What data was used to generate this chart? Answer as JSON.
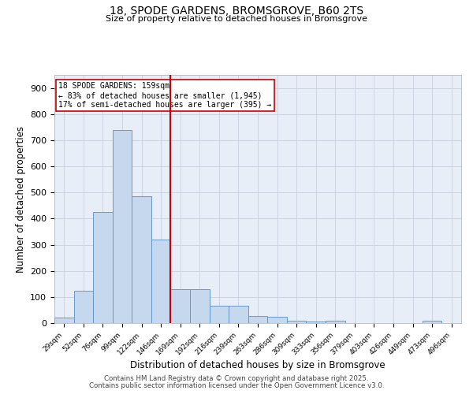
{
  "title_line1": "18, SPODE GARDENS, BROMSGROVE, B60 2TS",
  "title_line2": "Size of property relative to detached houses in Bromsgrove",
  "xlabel": "Distribution of detached houses by size in Bromsgrove",
  "ylabel": "Number of detached properties",
  "bin_labels": [
    "29sqm",
    "52sqm",
    "76sqm",
    "99sqm",
    "122sqm",
    "146sqm",
    "169sqm",
    "192sqm",
    "216sqm",
    "239sqm",
    "263sqm",
    "286sqm",
    "309sqm",
    "333sqm",
    "356sqm",
    "379sqm",
    "403sqm",
    "426sqm",
    "449sqm",
    "473sqm",
    "496sqm"
  ],
  "bar_values": [
    20,
    125,
    425,
    740,
    485,
    320,
    130,
    130,
    65,
    65,
    28,
    23,
    10,
    5,
    8,
    0,
    0,
    0,
    0,
    8,
    0
  ],
  "bar_color": "#c5d8ed",
  "bar_edge_color": "#6699cc",
  "vline_color": "#cc0000",
  "annotation_text": "18 SPODE GARDENS: 159sqm\n← 83% of detached houses are smaller (1,945)\n17% of semi-detached houses are larger (395) →",
  "annotation_box_color": "white",
  "annotation_box_edge_color": "#cc0000",
  "ylim": [
    0,
    950
  ],
  "yticks": [
    0,
    100,
    200,
    300,
    400,
    500,
    600,
    700,
    800,
    900
  ],
  "bg_color": "#e8eef8",
  "grid_color": "#c0c8d8",
  "footer_line1": "Contains HM Land Registry data © Crown copyright and database right 2025.",
  "footer_line2": "Contains public sector information licensed under the Open Government Licence v3.0."
}
